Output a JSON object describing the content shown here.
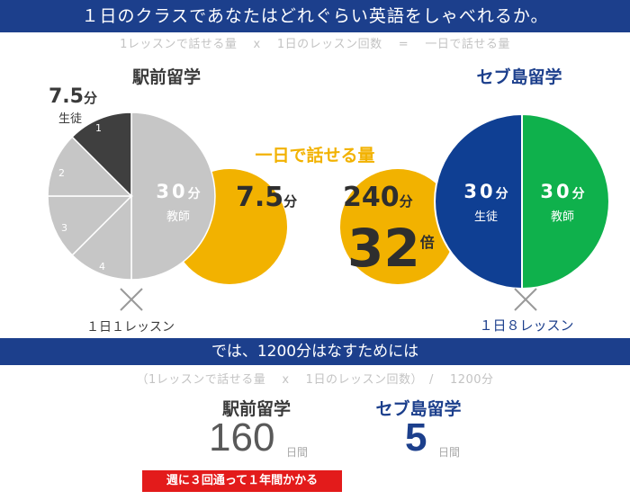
{
  "header": {
    "title": "１日のクラスであなたはどれぐらい英語をしゃべれるか。",
    "formula": "1レッスンで話せる量　 x 　1日のレッスン回数 　=　 一日で話せる量"
  },
  "chart_data": [
    {
      "type": "pie",
      "title": "駅前留学",
      "labels": [
        "1",
        "2",
        "3",
        "4",
        "教師"
      ],
      "values": [
        7.5,
        7.5,
        7.5,
        7.5,
        30
      ],
      "colors": [
        "#3f3f3f",
        "#c6c6c6",
        "#c6c6c6",
        "#c6c6c6",
        "#c6c6c6"
      ],
      "student": {
        "value": "7.5",
        "unit": "分",
        "label": "生徒"
      },
      "teacher": {
        "value": "30",
        "unit": "分",
        "label": "教師"
      },
      "lessons_per_day": "１日１レッスン"
    },
    {
      "type": "pie",
      "title": "セブ島留学",
      "labels": [
        "生徒",
        "教師"
      ],
      "values": [
        30,
        30
      ],
      "colors": [
        "#0f3f93",
        "#0fb14c"
      ],
      "student": {
        "value": "30",
        "unit": "分",
        "label": "生徒"
      },
      "teacher": {
        "value": "30",
        "unit": "分",
        "label": "教師"
      },
      "lessons_per_day": "１日８レッスン"
    }
  ],
  "center": {
    "caption": "一日で話せる量",
    "left_value": "7.5",
    "left_unit": "分",
    "right_value": "240",
    "right_unit": "分",
    "multiplier": "32",
    "multiplier_unit": "倍",
    "accent_color": "#f2b200"
  },
  "section2": {
    "title": "では、1200分はなすためには",
    "formula": "（1レッスンで話せる量　 x 　1日のレッスン回数）　/　 1200分",
    "left_label": "駅前留学",
    "left_value": "160",
    "left_unit": "日間",
    "right_label": "セブ島留学",
    "right_value": "5",
    "right_unit": "日間",
    "note": "週に３回通って１年間かかる"
  }
}
